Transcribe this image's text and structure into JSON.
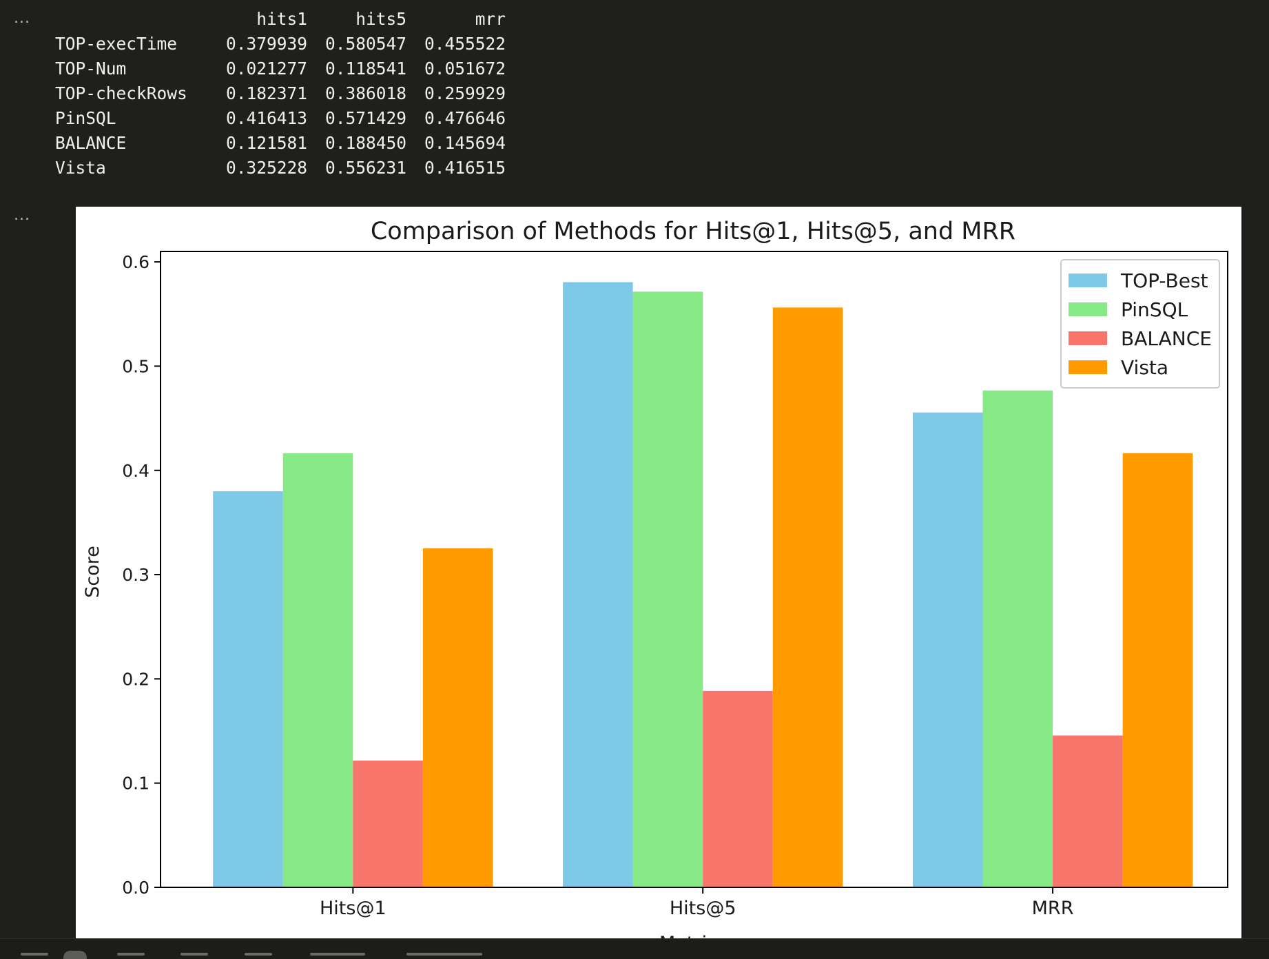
{
  "cells": {
    "gutter_1": "...",
    "gutter_2": "..."
  },
  "dataframe": {
    "columns": [
      "",
      "hits1",
      "hits5",
      "mrr"
    ],
    "rows": [
      {
        "index": "TOP-execTime",
        "values": [
          "0.379939",
          "0.580547",
          "0.455522"
        ]
      },
      {
        "index": "TOP-Num",
        "values": [
          "0.021277",
          "0.118541",
          "0.051672"
        ]
      },
      {
        "index": "TOP-checkRows",
        "values": [
          "0.182371",
          "0.386018",
          "0.259929"
        ]
      },
      {
        "index": "PinSQL",
        "values": [
          "0.416413",
          "0.571429",
          "0.476646"
        ]
      },
      {
        "index": "BALANCE",
        "values": [
          "0.121581",
          "0.188450",
          "0.145694"
        ]
      },
      {
        "index": "Vista",
        "values": [
          "0.325228",
          "0.556231",
          "0.416515"
        ]
      }
    ]
  },
  "chart_data": {
    "type": "bar",
    "title": "Comparison of Methods for Hits@1, Hits@5, and MRR",
    "xlabel": "Metrics",
    "ylabel": "Score",
    "categories": [
      "Hits@1",
      "Hits@5",
      "MRR"
    ],
    "ylim": [
      0,
      0.61
    ],
    "yticks": [
      0.0,
      0.1,
      0.2,
      0.3,
      0.4,
      0.5,
      0.6
    ],
    "ytick_labels": [
      "0.0",
      "0.1",
      "0.2",
      "0.3",
      "0.4",
      "0.5",
      "0.6"
    ],
    "grid": false,
    "legend_position": "top-right",
    "series": [
      {
        "name": "TOP-Best",
        "color": "#7ec8e8",
        "values": [
          0.379939,
          0.580547,
          0.455522
        ]
      },
      {
        "name": "PinSQL",
        "color": "#86e986",
        "values": [
          0.416413,
          0.571429,
          0.476646
        ]
      },
      {
        "name": "BALANCE",
        "color": "#f8756b",
        "values": [
          0.121581,
          0.18845,
          0.145694
        ]
      },
      {
        "name": "Vista",
        "color": "#ff9a00",
        "values": [
          0.325228,
          0.556231,
          0.416515
        ]
      }
    ]
  }
}
